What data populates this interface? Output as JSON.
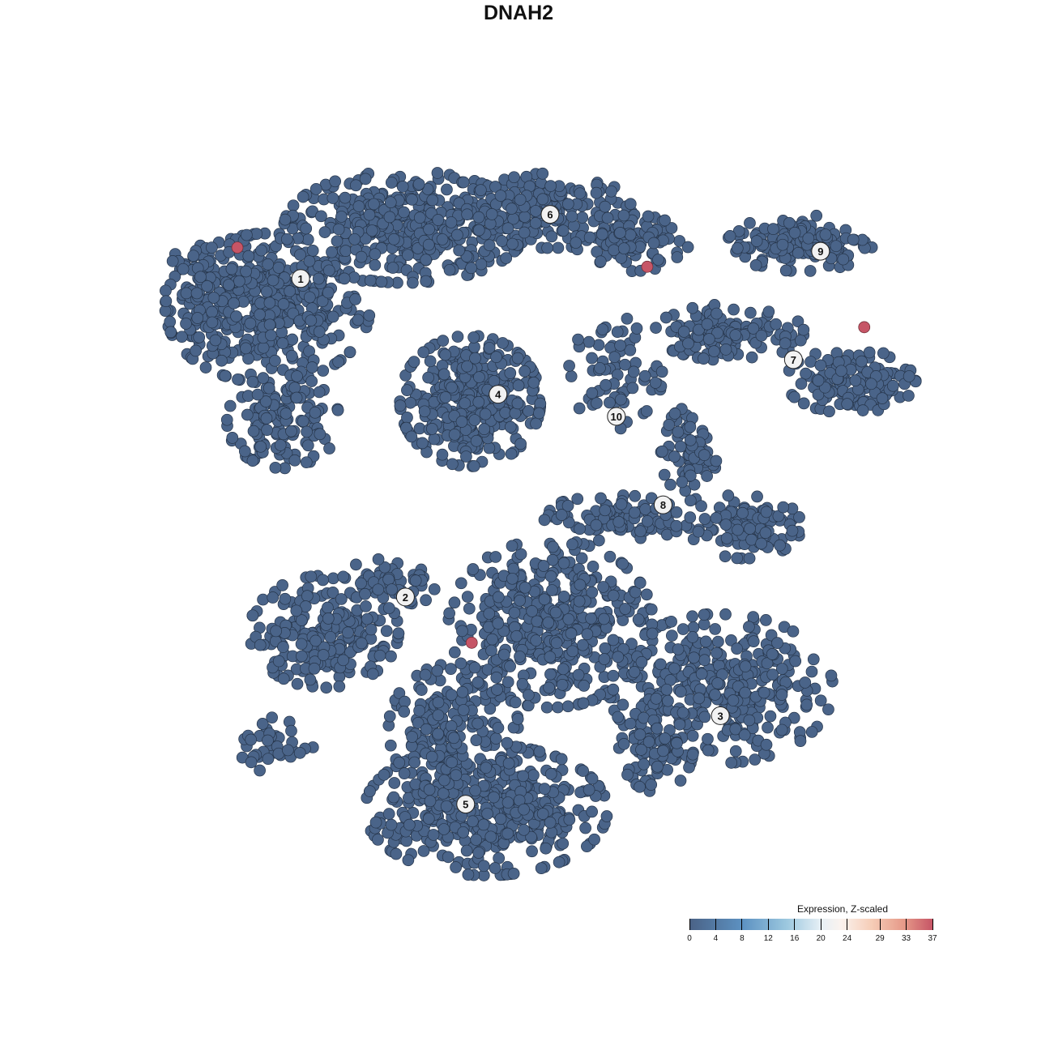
{
  "chart_data": {
    "type": "scatter",
    "title": "DNAH2",
    "xlabel": "",
    "ylabel": "",
    "axes_visible": false,
    "grid": false,
    "xlim": [
      0,
      100
    ],
    "ylim": [
      0,
      100
    ],
    "point_color_default": "#4a6489",
    "point_stroke": "#26354a",
    "cluster_labels": [
      {
        "label": "1",
        "x": 18.4,
        "y": 82.0
      },
      {
        "label": "2",
        "x": 32.3,
        "y": 38.8
      },
      {
        "label": "3",
        "x": 74.1,
        "y": 22.7
      },
      {
        "label": "4",
        "x": 44.6,
        "y": 66.3
      },
      {
        "label": "5",
        "x": 40.3,
        "y": 10.7
      },
      {
        "label": "6",
        "x": 51.5,
        "y": 90.7
      },
      {
        "label": "7",
        "x": 83.8,
        "y": 71.0
      },
      {
        "label": "8",
        "x": 66.5,
        "y": 51.3
      },
      {
        "label": "9",
        "x": 87.4,
        "y": 85.7
      },
      {
        "label": "10",
        "x": 60.3,
        "y": 63.3
      }
    ],
    "cluster_regions": [
      {
        "cluster": "1",
        "blobs": [
          [
            14.0,
            78.0,
            11.8,
            8.8,
            420
          ],
          [
            16.1,
            62.6,
            6.5,
            5.5,
            130
          ],
          [
            5.4,
            80.2,
            4.3,
            6.6,
            70
          ]
        ]
      },
      {
        "cluster": "6",
        "blobs": [
          [
            32.3,
            89.0,
            14.0,
            6.6,
            420
          ],
          [
            51.6,
            91.2,
            9.7,
            4.4,
            170
          ],
          [
            62.4,
            86.8,
            6.5,
            3.3,
            90
          ]
        ]
      },
      {
        "cluster": "4",
        "blobs": [
          [
            40.9,
            65.4,
            8.1,
            7.7,
            340
          ]
        ]
      },
      {
        "cluster": "9",
        "blobs": [
          [
            84.9,
            86.8,
            8.6,
            3.3,
            130
          ]
        ]
      },
      {
        "cluster": "7",
        "blobs": [
          [
            75.3,
            74.7,
            8.6,
            3.3,
            130
          ],
          [
            91.4,
            68.1,
            7.5,
            3.8,
            130
          ]
        ]
      },
      {
        "cluster": "10",
        "blobs": [
          [
            60.2,
            69.2,
            5.4,
            6.6,
            70
          ]
        ]
      },
      {
        "cluster": "8",
        "blobs": [
          [
            69.9,
            58.2,
            3.2,
            5.5,
            70
          ],
          [
            77.4,
            48.4,
            6.5,
            3.8,
            110
          ],
          [
            60.2,
            49.5,
            8.6,
            2.7,
            90
          ]
        ]
      },
      {
        "cluster": "2",
        "blobs": [
          [
            21.5,
            34.1,
            8.6,
            6.6,
            220
          ],
          [
            30.1,
            40.7,
            5.4,
            3.3,
            50
          ],
          [
            15.1,
            18.7,
            4.3,
            3.3,
            35
          ]
        ]
      },
      {
        "cluster": "3",
        "blobs": [
          [
            74.2,
            26.4,
            12.9,
            8.8,
            340
          ],
          [
            65.6,
            18.7,
            4.3,
            5.5,
            90
          ]
        ]
      },
      {
        "cluster": "5",
        "blobs": [
          [
            43.0,
            9.9,
            14.0,
            7.7,
            420
          ],
          [
            38.7,
            20.9,
            7.5,
            7.7,
            170
          ],
          [
            51.6,
            35.2,
            11.8,
            9.9,
            420
          ]
        ]
      }
    ],
    "high_expression_points": [
      {
        "x": 10.0,
        "y": 86.2,
        "value": 37
      },
      {
        "x": 64.4,
        "y": 83.6,
        "value": 37
      },
      {
        "x": 93.2,
        "y": 75.4,
        "value": 37
      },
      {
        "x": 41.1,
        "y": 32.6,
        "value": 37
      }
    ],
    "legend": {
      "title": "Expression, Z-scaled",
      "ticks": [
        "0",
        "4",
        "8",
        "12",
        "16",
        "20",
        "24",
        "29",
        "33",
        "37"
      ],
      "range": [
        0,
        37
      ],
      "low_color": "#4a6286",
      "mid_color": "#f7f7f7",
      "high_color": "#c65566",
      "placement": "bottom-right"
    }
  }
}
